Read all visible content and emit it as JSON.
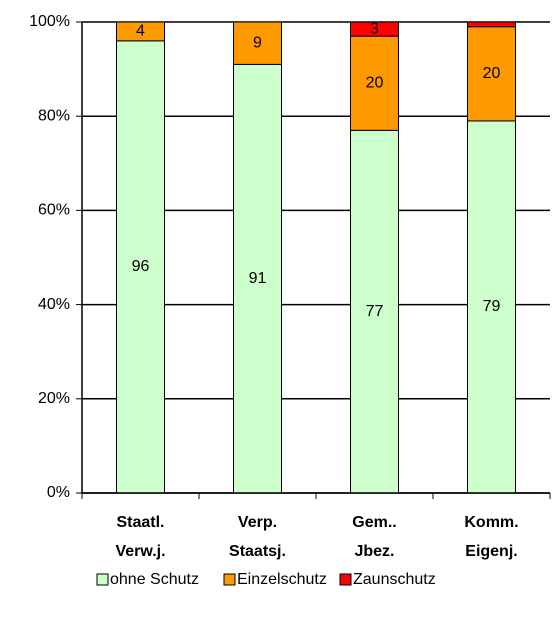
{
  "chart_data": {
    "type": "stacked_bar",
    "categories": [
      [
        "Staatl.",
        "Verw.j."
      ],
      [
        "Verp.",
        "Staatsj."
      ],
      [
        "Gem..",
        "Jbez."
      ],
      [
        "Komm.",
        "Eigenj."
      ]
    ],
    "series": [
      {
        "name": "ohne Schutz",
        "color": "#ccffcc",
        "values": [
          96,
          91,
          77,
          79
        ]
      },
      {
        "name": "Einzelschutz",
        "color": "#ff9900",
        "values": [
          4,
          9,
          20,
          20
        ]
      },
      {
        "name": "Zaunschutz",
        "color": "#ff0000",
        "values": [
          0,
          0,
          3,
          1
        ],
        "value_labels": [
          null,
          null,
          "3",
          null
        ]
      }
    ],
    "ylim": [
      0,
      100
    ],
    "yticks": [
      {
        "value": 0,
        "label": "0%"
      },
      {
        "value": 20,
        "label": "20%"
      },
      {
        "value": 40,
        "label": "40%"
      },
      {
        "value": 60,
        "label": "60%"
      },
      {
        "value": 80,
        "label": "80%"
      },
      {
        "value": 100,
        "label": "100%"
      }
    ],
    "grid": true,
    "legend": "bottom"
  }
}
